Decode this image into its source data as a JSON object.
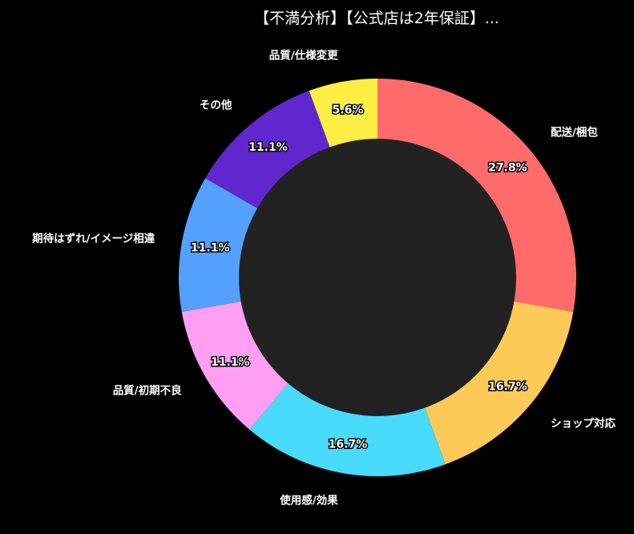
{
  "chart_data": {
    "type": "pie",
    "donut": true,
    "title": "【不満分析】【公式店は2年保証】...",
    "start": "top",
    "direction": "clockwise",
    "slices": [
      {
        "label": "配送/梱包",
        "value": 27.8,
        "pct_label": "27.8%",
        "color": "#ff6b6b"
      },
      {
        "label": "ショップ対応",
        "value": 16.7,
        "pct_label": "16.7%",
        "color": "#feca57"
      },
      {
        "label": "使用感/効果",
        "value": 16.7,
        "pct_label": "16.7%",
        "color": "#48dbfb"
      },
      {
        "label": "品質/初期不良",
        "value": 11.1,
        "pct_label": "11.1%",
        "color": "#ff9ff3"
      },
      {
        "label": "期待はずれ/イメージ相違",
        "value": 11.1,
        "pct_label": "11.1%",
        "color": "#54a0ff"
      },
      {
        "label": "その他",
        "value": 11.1,
        "pct_label": "11.1%",
        "color": "#5f27cd"
      },
      {
        "label": "品質/仕様変更",
        "value": 5.6,
        "pct_label": "5.6%",
        "color": "#ffee44"
      }
    ],
    "hole_color": "#222222",
    "background": "#000000"
  }
}
